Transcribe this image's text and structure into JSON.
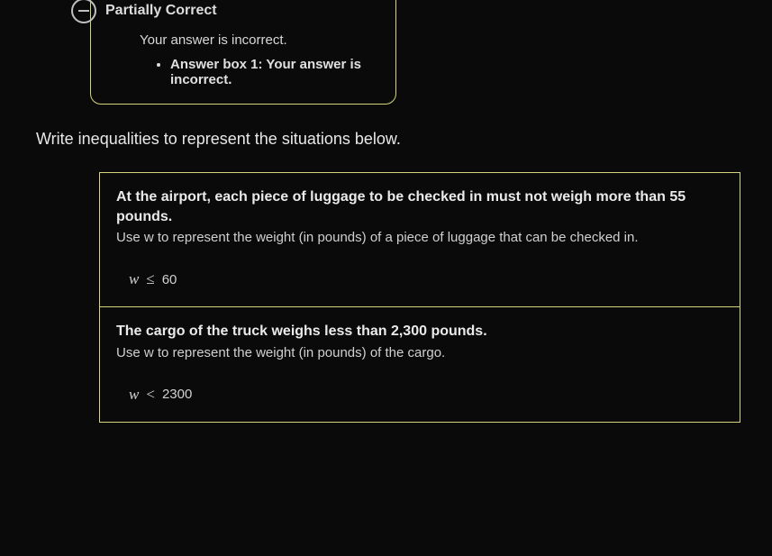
{
  "feedback": {
    "title": "Partially Correct",
    "message": "Your answer is incorrect.",
    "items": [
      "Answer box 1: Your answer is incorrect."
    ]
  },
  "instruction": "Write inequalities to represent the situations below.",
  "problems": [
    {
      "bold_text": "At the airport, each piece of luggage to be checked in must not weigh more than 55 pounds.",
      "sub_text": "Use w to represent the weight (in pounds) of a piece of luggage that can be checked in.",
      "answer": {
        "var": "w",
        "op": "≤",
        "value": "60"
      }
    },
    {
      "bold_text": "The cargo of the truck weighs less than 2,300 pounds.",
      "sub_text": "Use w to represent the weight (in pounds) of the cargo.",
      "answer": {
        "var": "w",
        "op": "<",
        "value": "2300"
      }
    }
  ],
  "colors": {
    "background": "#0a0a0a",
    "border": "#d4d47a",
    "text_primary": "#e0e0e0",
    "text_secondary": "#d0d0d0"
  }
}
